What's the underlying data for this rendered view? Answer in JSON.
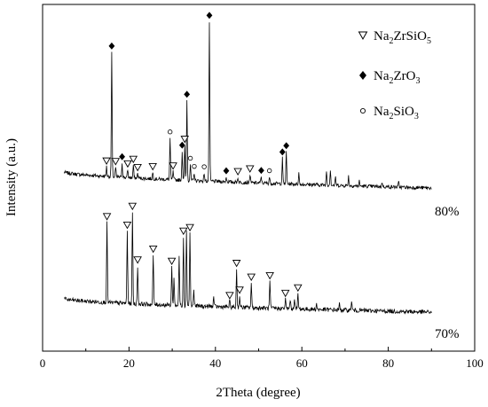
{
  "chart_data": {
    "type": "line",
    "title": "",
    "xlabel": "2Theta (degree)",
    "ylabel": "Intensity (a.u.)",
    "xlim": [
      0,
      100
    ],
    "xticks": [
      "0",
      "20",
      "40",
      "60",
      "80",
      "100"
    ],
    "grid": false,
    "legend_position": "top-right",
    "legend": [
      {
        "marker": "open-triangle-down",
        "label": "Na2ZrSiO5",
        "base": "Na",
        "parts": [
          {
            "t": "2",
            "sub": true
          },
          {
            "t": "ZrSiO",
            "sub": false
          },
          {
            "t": "5",
            "sub": true
          }
        ]
      },
      {
        "marker": "filled-diamond",
        "label": "Na2ZrO3",
        "base": "Na",
        "parts": [
          {
            "t": "2",
            "sub": true
          },
          {
            "t": "ZrO",
            "sub": false
          },
          {
            "t": "3",
            "sub": true
          }
        ]
      },
      {
        "marker": "open-circle",
        "label": "Na2SiO3",
        "base": "Na",
        "parts": [
          {
            "t": "2",
            "sub": true
          },
          {
            "t": "SiO",
            "sub": false
          },
          {
            "t": "3",
            "sub": true
          }
        ]
      }
    ],
    "series": [
      {
        "name": "80%",
        "x_range": [
          5,
          90
        ],
        "baseline_start": 0.1,
        "baseline_end": 0.0,
        "peaks": [
          {
            "x": 14.8,
            "h": 0.06,
            "phase": "Na2ZrSiO5"
          },
          {
            "x": 16.0,
            "h": 0.78,
            "phase": "Na2ZrO3"
          },
          {
            "x": 16.9,
            "h": 0.06,
            "phase": "Na2ZrSiO5"
          },
          {
            "x": 18.4,
            "h": 0.09,
            "phase": "Na2ZrO3"
          },
          {
            "x": 19.7,
            "h": 0.05,
            "phase": "Na2ZrSiO5"
          },
          {
            "x": 21.0,
            "h": 0.08,
            "phase": "Na2ZrSiO5"
          },
          {
            "x": 22.0,
            "h": 0.03,
            "phase": "Na2ZrSiO5"
          },
          {
            "x": 25.5,
            "h": 0.04,
            "phase": "Na2ZrSiO5"
          },
          {
            "x": 29.5,
            "h": 0.26,
            "phase": "Na2SiO3"
          },
          {
            "x": 30.2,
            "h": 0.05,
            "phase": "Na2ZrSiO5"
          },
          {
            "x": 32.3,
            "h": 0.18,
            "phase": "Na2ZrO3"
          },
          {
            "x": 32.9,
            "h": 0.22,
            "phase": "Na2ZrSiO5"
          },
          {
            "x": 33.4,
            "h": 0.5,
            "phase": "Na2ZrO3"
          },
          {
            "x": 34.2,
            "h": 0.1,
            "phase": "Na2SiO3"
          },
          {
            "x": 35.1,
            "h": 0.05,
            "phase": "Na2SiO3"
          },
          {
            "x": 37.4,
            "h": 0.05,
            "phase": "Na2SiO3"
          },
          {
            "x": 38.6,
            "h": 1.0,
            "phase": "Na2ZrO3"
          },
          {
            "x": 42.5,
            "h": 0.03,
            "phase": "Na2ZrO3"
          },
          {
            "x": 45.2,
            "h": 0.03,
            "phase": "Na2ZrSiO5"
          },
          {
            "x": 48.0,
            "h": 0.05,
            "phase": "Na2ZrSiO5"
          },
          {
            "x": 50.6,
            "h": 0.04,
            "phase": "Na2ZrO3"
          },
          {
            "x": 52.5,
            "h": 0.04,
            "phase": "Na2SiO3"
          },
          {
            "x": 55.5,
            "h": 0.16,
            "phase": "Na2ZrO3"
          },
          {
            "x": 56.4,
            "h": 0.2,
            "phase": "Na2ZrO3"
          },
          {
            "x": 59.3,
            "h": 0.07,
            "phase": ""
          },
          {
            "x": 65.7,
            "h": 0.09,
            "phase": ""
          },
          {
            "x": 66.6,
            "h": 0.1,
            "phase": ""
          },
          {
            "x": 67.8,
            "h": 0.05,
            "phase": ""
          },
          {
            "x": 70.8,
            "h": 0.06,
            "phase": ""
          },
          {
            "x": 73.3,
            "h": 0.03,
            "phase": ""
          },
          {
            "x": 78.6,
            "h": 0.03,
            "phase": ""
          },
          {
            "x": 82.4,
            "h": 0.03,
            "phase": ""
          }
        ]
      },
      {
        "name": "70%",
        "x_range": [
          5,
          90
        ],
        "baseline_start": 0.07,
        "baseline_end": 0.0,
        "peaks": [
          {
            "x": 14.9,
            "h": 0.42,
            "phase": "Na2ZrSiO5"
          },
          {
            "x": 19.6,
            "h": 0.38,
            "phase": "Na2ZrSiO5"
          },
          {
            "x": 20.8,
            "h": 0.48,
            "phase": "Na2ZrSiO5"
          },
          {
            "x": 22.0,
            "h": 0.2,
            "phase": "Na2ZrSiO5"
          },
          {
            "x": 25.6,
            "h": 0.26,
            "phase": "Na2ZrSiO5"
          },
          {
            "x": 29.9,
            "h": 0.2,
            "phase": "Na2ZrSiO5"
          },
          {
            "x": 30.4,
            "h": 0.14,
            "phase": ""
          },
          {
            "x": 31.6,
            "h": 0.26,
            "phase": ""
          },
          {
            "x": 32.6,
            "h": 0.36,
            "phase": "Na2ZrSiO5"
          },
          {
            "x": 33.3,
            "h": 0.4,
            "phase": ""
          },
          {
            "x": 34.1,
            "h": 0.38,
            "phase": "Na2ZrSiO5"
          },
          {
            "x": 35.0,
            "h": 0.08,
            "phase": ""
          },
          {
            "x": 39.6,
            "h": 0.05,
            "phase": ""
          },
          {
            "x": 43.3,
            "h": 0.03,
            "phase": "Na2ZrSiO5"
          },
          {
            "x": 44.9,
            "h": 0.2,
            "phase": "Na2ZrSiO5"
          },
          {
            "x": 45.6,
            "h": 0.06,
            "phase": "Na2ZrSiO5"
          },
          {
            "x": 48.3,
            "h": 0.13,
            "phase": "Na2ZrSiO5"
          },
          {
            "x": 52.6,
            "h": 0.14,
            "phase": "Na2ZrSiO5"
          },
          {
            "x": 56.2,
            "h": 0.05,
            "phase": "Na2ZrSiO5"
          },
          {
            "x": 57.3,
            "h": 0.05,
            "phase": ""
          },
          {
            "x": 58.3,
            "h": 0.06,
            "phase": ""
          },
          {
            "x": 59.1,
            "h": 0.08,
            "phase": "Na2ZrSiO5"
          },
          {
            "x": 63.4,
            "h": 0.03,
            "phase": ""
          },
          {
            "x": 68.7,
            "h": 0.03,
            "phase": ""
          },
          {
            "x": 71.5,
            "h": 0.05,
            "phase": ""
          }
        ]
      }
    ]
  }
}
